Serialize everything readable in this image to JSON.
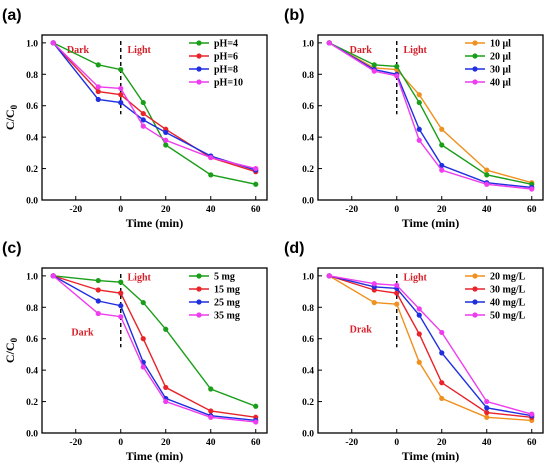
{
  "chart_data": [
    {
      "panel": "(a)",
      "type": "line",
      "xlabel": "Time (min)",
      "ylabel": "C/C0",
      "xlim": [
        -35,
        65
      ],
      "ylim": [
        0.0,
        1.05
      ],
      "xticks": [
        -20,
        0,
        20,
        40,
        60
      ],
      "yticks": [
        0.0,
        0.2,
        0.4,
        0.6,
        0.8,
        1.0
      ],
      "annotations": {
        "dark": "Dark",
        "light": "Light",
        "dark_pos": [
          -19,
          0.935
        ],
        "light_pos": [
          3,
          0.935
        ]
      },
      "legend": "top-right",
      "x": [
        -30,
        -10,
        0,
        10,
        20,
        40,
        60
      ],
      "series": [
        {
          "name": "pH=4",
          "color": "#1a9e1a",
          "values": [
            1.0,
            0.86,
            0.83,
            0.62,
            0.35,
            0.16,
            0.1
          ]
        },
        {
          "name": "pH=6",
          "color": "#e8232a",
          "values": [
            1.0,
            0.69,
            0.67,
            0.55,
            0.45,
            0.27,
            0.18
          ]
        },
        {
          "name": "pH=8",
          "color": "#1f2fe0",
          "values": [
            1.0,
            0.64,
            0.62,
            0.51,
            0.43,
            0.28,
            0.19
          ]
        },
        {
          "name": "pH=10",
          "color": "#ee3cee",
          "values": [
            1.0,
            0.72,
            0.71,
            0.47,
            0.38,
            0.27,
            0.2
          ]
        }
      ]
    },
    {
      "panel": "(b)",
      "type": "line",
      "xlabel": "Time (min)",
      "ylabel": "",
      "xlim": [
        -35,
        65
      ],
      "ylim": [
        0.0,
        1.05
      ],
      "xticks": [
        -20,
        0,
        20,
        40,
        60
      ],
      "yticks": [
        0.0,
        0.2,
        0.4,
        0.6,
        0.8,
        1.0
      ],
      "annotations": {
        "dark": "Dark",
        "light": "Light",
        "dark_pos": [
          -16,
          0.935
        ],
        "light_pos": [
          3,
          0.935
        ]
      },
      "legend": "top-right",
      "x": [
        -30,
        -10,
        0,
        10,
        20,
        40,
        60
      ],
      "series": [
        {
          "name": "10 μl",
          "color": "#f0901e",
          "values": [
            1.0,
            0.84,
            0.83,
            0.67,
            0.45,
            0.19,
            0.11
          ]
        },
        {
          "name": "20 μl",
          "color": "#1a9e1a",
          "values": [
            1.0,
            0.86,
            0.85,
            0.62,
            0.35,
            0.16,
            0.1
          ]
        },
        {
          "name": "30 μl",
          "color": "#1f2fe0",
          "values": [
            1.0,
            0.83,
            0.8,
            0.45,
            0.22,
            0.11,
            0.08
          ]
        },
        {
          "name": "40 μl",
          "color": "#ee3cee",
          "values": [
            1.0,
            0.82,
            0.79,
            0.38,
            0.19,
            0.1,
            0.07
          ]
        }
      ]
    },
    {
      "panel": "(c)",
      "type": "line",
      "xlabel": "Time (min)",
      "ylabel": "C/C0",
      "xlim": [
        -35,
        65
      ],
      "ylim": [
        0.0,
        1.05
      ],
      "xticks": [
        -20,
        0,
        20,
        40,
        60
      ],
      "yticks": [
        0.0,
        0.2,
        0.4,
        0.6,
        0.8,
        1.0
      ],
      "annotations": {
        "dark": "Dark",
        "light": "Light",
        "dark_pos": [
          -17,
          0.62
        ],
        "light_pos": [
          3,
          0.97
        ]
      },
      "legend": "top-right",
      "x": [
        -30,
        -10,
        0,
        10,
        20,
        40,
        60
      ],
      "series": [
        {
          "name": "5 mg",
          "color": "#1a9e1a",
          "values": [
            1.0,
            0.97,
            0.96,
            0.83,
            0.66,
            0.28,
            0.17
          ]
        },
        {
          "name": "15 mg",
          "color": "#e8232a",
          "values": [
            1.0,
            0.91,
            0.89,
            0.6,
            0.29,
            0.14,
            0.1
          ]
        },
        {
          "name": "25 mg",
          "color": "#1f2fe0",
          "values": [
            1.0,
            0.84,
            0.81,
            0.45,
            0.22,
            0.11,
            0.08
          ]
        },
        {
          "name": "35 mg",
          "color": "#ee3cee",
          "values": [
            1.0,
            0.76,
            0.74,
            0.42,
            0.2,
            0.1,
            0.07
          ]
        }
      ]
    },
    {
      "panel": "(d)",
      "type": "line",
      "xlabel": "Time (min)",
      "ylabel": "",
      "xlim": [
        -35,
        65
      ],
      "ylim": [
        0.0,
        1.05
      ],
      "xticks": [
        -20,
        0,
        20,
        40,
        60
      ],
      "yticks": [
        0.0,
        0.2,
        0.4,
        0.6,
        0.8,
        1.0
      ],
      "annotations": {
        "dark": "Drak",
        "light": "Light",
        "dark_pos": [
          -16,
          0.64
        ],
        "light_pos": [
          3,
          0.97
        ]
      },
      "legend": "top-right",
      "x": [
        -30,
        -10,
        0,
        10,
        20,
        40,
        60
      ],
      "series": [
        {
          "name": "20 mg/L",
          "color": "#f0901e",
          "values": [
            1.0,
            0.83,
            0.82,
            0.45,
            0.22,
            0.1,
            0.08
          ]
        },
        {
          "name": "30 mg/L",
          "color": "#e8232a",
          "values": [
            1.0,
            0.91,
            0.89,
            0.63,
            0.32,
            0.13,
            0.1
          ]
        },
        {
          "name": "40 mg/L",
          "color": "#1f2fe0",
          "values": [
            1.0,
            0.93,
            0.92,
            0.75,
            0.51,
            0.16,
            0.11
          ]
        },
        {
          "name": "50 mg/L",
          "color": "#ee3cee",
          "values": [
            1.0,
            0.95,
            0.94,
            0.79,
            0.64,
            0.2,
            0.12
          ]
        }
      ]
    }
  ]
}
